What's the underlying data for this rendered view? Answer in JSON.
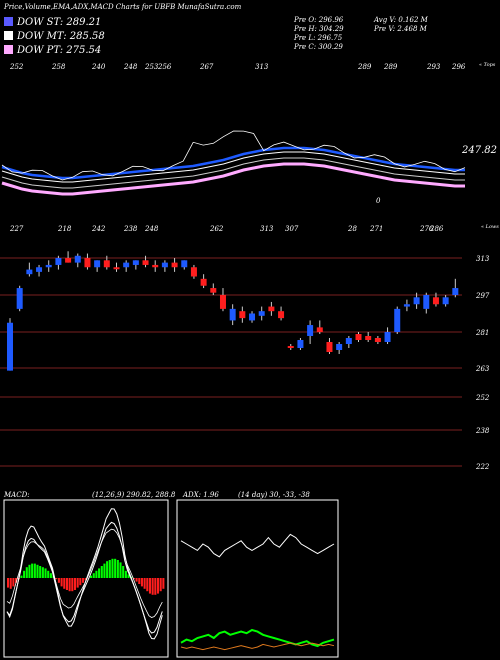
{
  "header": {
    "title": "Price,Volume,EMA,ADX,MACD Charts for UBFB MunafaSutra.com"
  },
  "legend": [
    {
      "label": "DOW ST: 289.21",
      "color": "#5a5aff"
    },
    {
      "label": "DOW MT: 285.58",
      "color": "#ffffff"
    },
    {
      "label": "DOW PT: 275.54",
      "color": "#ffaaff"
    }
  ],
  "quote": {
    "open": "Pre  O: 296.96",
    "high": "Pre  H: 304.29",
    "low": "Pre  L: 296.75",
    "close": "Pre  C: 300.29",
    "avg_vol": "Avg V: 0.162  M",
    "pre_vol": "Pre  V: 2.468  M"
  },
  "top_panel": {
    "corner_label": "« Tops",
    "value_label": "247.82",
    "zero_label": "0",
    "tops": [
      {
        "t": "252"
      },
      {
        "t": "258"
      },
      {
        "t": "240"
      },
      {
        "t": "248"
      },
      {
        "t": "253"
      },
      {
        "t": "256"
      },
      {
        "t": "267"
      },
      {
        "t": "313"
      },
      {
        "t": "289"
      },
      {
        "t": "289"
      },
      {
        "t": "293"
      },
      {
        "t": "296"
      }
    ]
  },
  "price_panel": {
    "corner_label": "« Lows",
    "lows": [
      {
        "t": "227"
      },
      {
        "t": "218"
      },
      {
        "t": "242"
      },
      {
        "t": "238"
      },
      {
        "t": "248"
      },
      {
        "t": "262"
      },
      {
        "t": "313"
      },
      {
        "t": "307"
      },
      {
        "t": "28"
      },
      {
        "t": "271"
      },
      {
        "t": "276"
      },
      {
        "t": "286"
      }
    ],
    "levels": [
      {
        "label": "313"
      },
      {
        "label": "297"
      },
      {
        "label": "281"
      },
      {
        "label": "263"
      },
      {
        "label": "252"
      },
      {
        "label": "238"
      },
      {
        "label": "222"
      }
    ]
  },
  "macd": {
    "label": "MACD:",
    "params": "(12,26,9) 290.82,  288.8"
  },
  "adx": {
    "label": "ADX:   1.96",
    "params": "(14  day) 30,  -33,  -38"
  },
  "colors": {
    "accent_blue": "#1e5aff",
    "up": "#1e5aff",
    "down": "#ff1e1e",
    "green": "#00ff00",
    "pink": "#ffaaff"
  },
  "chart_data": {
    "type": "candlestick",
    "title": "Price,Volume,EMA,ADX,MACD Charts for UBFB",
    "ylim": [
      222,
      320
    ],
    "y_levels": [
      313,
      297,
      281,
      263,
      252,
      238,
      222
    ],
    "candles": [
      {
        "o": 262,
        "h": 287,
        "l": 262,
        "c": 285,
        "up": true
      },
      {
        "o": 291,
        "h": 301,
        "l": 290,
        "c": 300,
        "up": true
      },
      {
        "o": 306,
        "h": 311,
        "l": 305,
        "c": 308,
        "up": true
      },
      {
        "o": 307,
        "h": 310,
        "l": 305,
        "c": 309,
        "up": true
      },
      {
        "o": 309,
        "h": 312,
        "l": 307,
        "c": 310,
        "up": true
      },
      {
        "o": 310,
        "h": 314,
        "l": 308,
        "c": 313,
        "up": true
      },
      {
        "o": 313,
        "h": 316,
        "l": 311,
        "c": 311,
        "up": false
      },
      {
        "o": 311,
        "h": 315,
        "l": 309,
        "c": 314,
        "up": true
      },
      {
        "o": 313,
        "h": 315,
        "l": 308,
        "c": 309,
        "up": false
      },
      {
        "o": 309,
        "h": 312,
        "l": 307,
        "c": 312,
        "up": true
      },
      {
        "o": 312,
        "h": 314,
        "l": 308,
        "c": 309,
        "up": false
      },
      {
        "o": 309,
        "h": 311,
        "l": 307,
        "c": 309,
        "up": false
      },
      {
        "o": 309,
        "h": 312,
        "l": 307,
        "c": 311,
        "up": true
      },
      {
        "o": 310,
        "h": 312,
        "l": 308,
        "c": 312,
        "up": true
      },
      {
        "o": 312,
        "h": 314,
        "l": 309,
        "c": 310,
        "up": false
      },
      {
        "o": 310,
        "h": 312,
        "l": 307,
        "c": 309,
        "up": false
      },
      {
        "o": 309,
        "h": 312,
        "l": 307,
        "c": 311,
        "up": true
      },
      {
        "o": 311,
        "h": 313,
        "l": 307,
        "c": 309,
        "up": false
      },
      {
        "o": 309,
        "h": 312,
        "l": 308,
        "c": 312,
        "up": true
      },
      {
        "o": 309,
        "h": 310,
        "l": 304,
        "c": 305,
        "up": false
      },
      {
        "o": 304,
        "h": 306,
        "l": 300,
        "c": 301,
        "up": false
      },
      {
        "o": 300,
        "h": 302,
        "l": 297,
        "c": 298,
        "up": false
      },
      {
        "o": 297,
        "h": 300,
        "l": 290,
        "c": 291,
        "up": false
      },
      {
        "o": 286,
        "h": 293,
        "l": 284,
        "c": 291,
        "up": true
      },
      {
        "o": 290,
        "h": 292,
        "l": 285,
        "c": 287,
        "up": false
      },
      {
        "o": 286,
        "h": 290,
        "l": 285,
        "c": 289,
        "up": true
      },
      {
        "o": 288,
        "h": 292,
        "l": 286,
        "c": 290,
        "up": true
      },
      {
        "o": 290,
        "h": 294,
        "l": 288,
        "c": 292,
        "up": false
      },
      {
        "o": 290,
        "h": 292,
        "l": 286,
        "c": 287,
        "up": false
      },
      {
        "o": 273,
        "h": 275,
        "l": 272,
        "c": 274,
        "up": false
      },
      {
        "o": 273,
        "h": 278,
        "l": 272,
        "c": 277,
        "up": true
      },
      {
        "o": 284,
        "h": 286,
        "l": 275,
        "c": 279,
        "up": true
      },
      {
        "o": 283,
        "h": 286,
        "l": 280,
        "c": 281,
        "up": false
      },
      {
        "o": 276,
        "h": 278,
        "l": 270,
        "c": 271,
        "up": false
      },
      {
        "o": 272,
        "h": 276,
        "l": 270,
        "c": 275,
        "up": true
      },
      {
        "o": 275,
        "h": 279,
        "l": 273,
        "c": 278,
        "up": true
      },
      {
        "o": 277,
        "h": 281,
        "l": 276,
        "c": 280,
        "up": false
      },
      {
        "o": 279,
        "h": 281,
        "l": 276,
        "c": 277,
        "up": false
      },
      {
        "o": 278,
        "h": 279,
        "l": 275,
        "c": 276,
        "up": false
      },
      {
        "o": 276,
        "h": 283,
        "l": 275,
        "c": 281,
        "up": true
      },
      {
        "o": 281,
        "h": 292,
        "l": 280,
        "c": 291,
        "up": true
      },
      {
        "o": 292,
        "h": 295,
        "l": 290,
        "c": 293,
        "up": true
      },
      {
        "o": 293,
        "h": 298,
        "l": 291,
        "c": 296,
        "up": true
      },
      {
        "o": 297,
        "h": 298,
        "l": 289,
        "c": 291,
        "up": true
      },
      {
        "o": 296,
        "h": 298,
        "l": 292,
        "c": 293,
        "up": false
      },
      {
        "o": 293,
        "h": 297,
        "l": 292,
        "c": 296,
        "up": true
      },
      {
        "o": 297,
        "h": 304,
        "l": 296,
        "c": 300,
        "up": true
      }
    ],
    "ema_top": [
      175,
      178,
      181,
      183,
      184,
      185,
      186,
      186,
      185,
      184,
      183,
      182,
      181,
      180,
      179,
      178,
      177,
      176,
      175,
      174,
      172,
      170,
      168,
      165,
      162,
      160,
      158,
      157,
      156,
      156,
      156,
      157,
      158,
      160,
      162,
      164,
      166,
      168,
      170,
      172,
      173,
      174,
      175,
      176,
      177,
      178,
      178
    ],
    "macd_line": [
      -8,
      -9,
      -7,
      -4,
      -1,
      2,
      6,
      9,
      11,
      12,
      12,
      11,
      10,
      9,
      8,
      6,
      4,
      2,
      -1,
      -4,
      -7,
      -9,
      -10,
      -11,
      -11,
      -10,
      -8,
      -6,
      -4,
      -2,
      0,
      2,
      4,
      6,
      8,
      10,
      12,
      14,
      15,
      16,
      16,
      15,
      13,
      10,
      6,
      3,
      1,
      -1,
      -3,
      -5,
      -7,
      -9,
      -11,
      -13,
      -14,
      -14,
      -13,
      -11,
      -9
    ],
    "adx_line": [
      31,
      30,
      29,
      28,
      30,
      29,
      27,
      26,
      28,
      29,
      30,
      31,
      29,
      28,
      29,
      30,
      32,
      30,
      29,
      31,
      33,
      32,
      30,
      29,
      28,
      27,
      28,
      29,
      30
    ],
    "adx_plus": [
      12,
      14,
      13,
      15,
      16,
      17,
      15,
      18,
      19,
      17,
      18,
      19,
      18,
      20,
      19,
      17,
      16,
      15,
      14,
      13,
      12,
      11,
      12,
      13,
      11,
      10,
      12,
      13,
      14
    ],
    "adx_minus": [
      10,
      9,
      10,
      9,
      8,
      9,
      10,
      9,
      8,
      9,
      10,
      11,
      10,
      9,
      10,
      12,
      11,
      10,
      11,
      12,
      13,
      12,
      11,
      12,
      13,
      12,
      11,
      12,
      11
    ]
  }
}
